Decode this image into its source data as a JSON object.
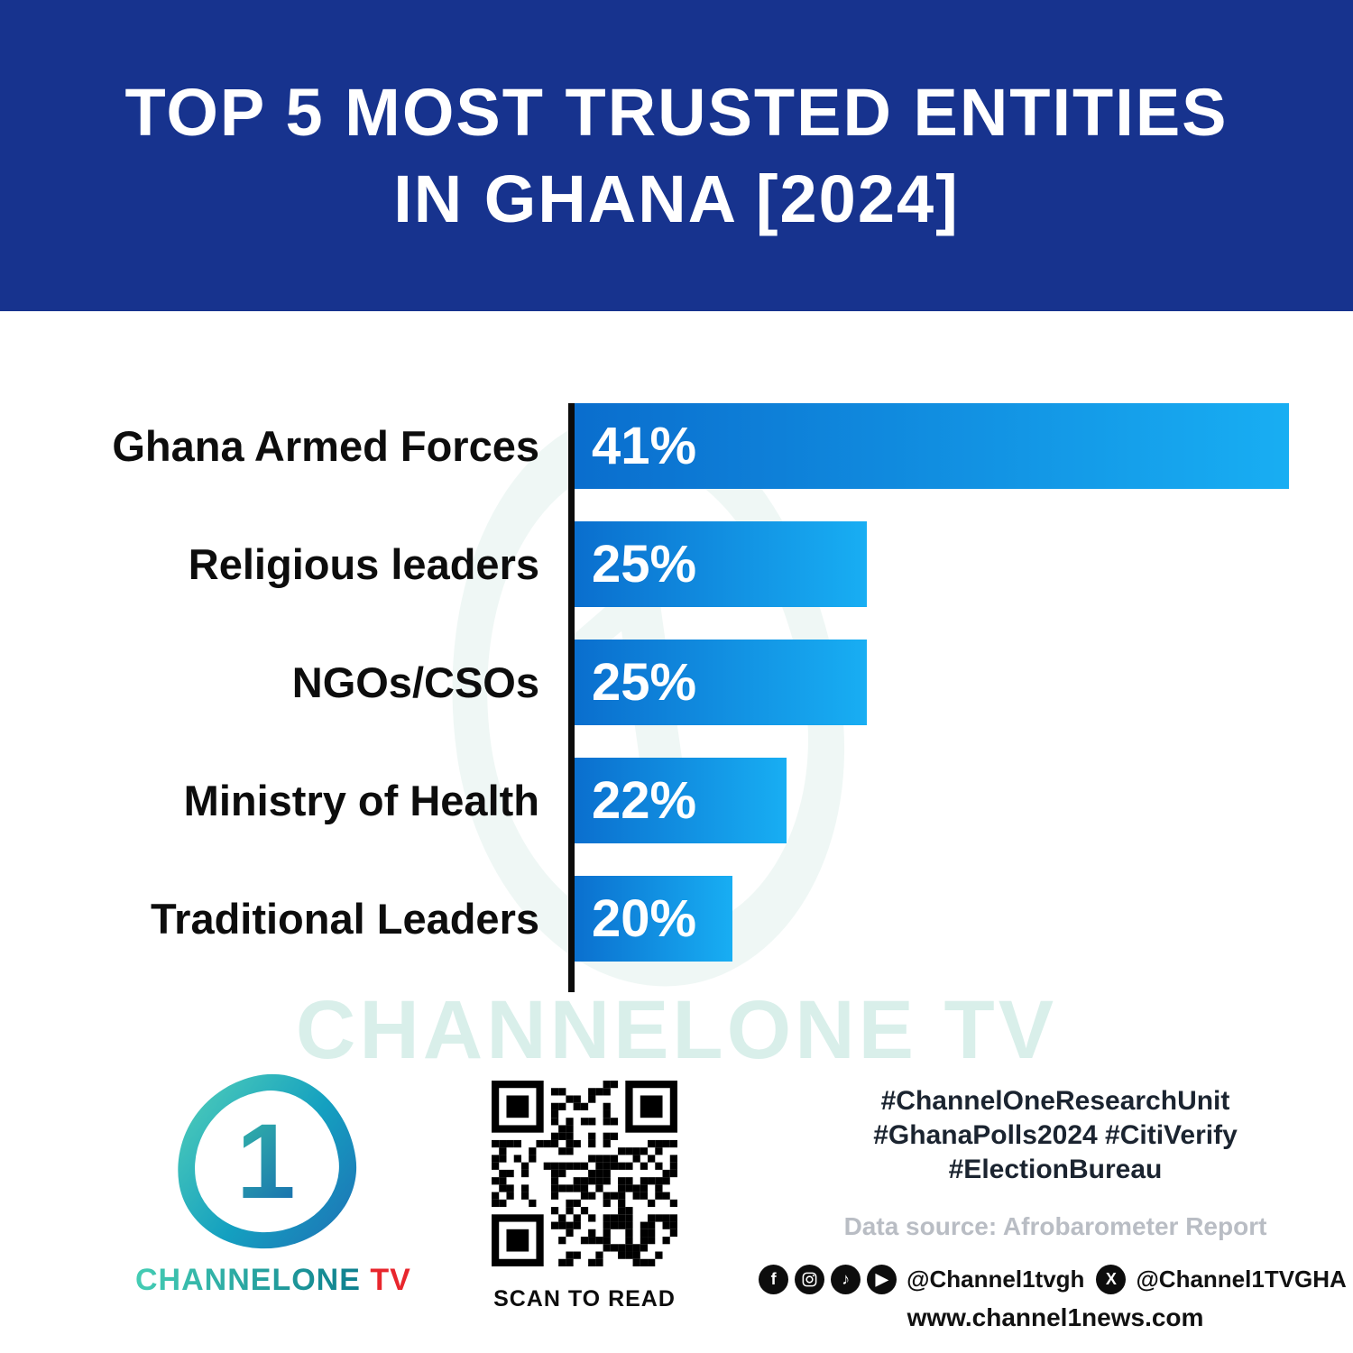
{
  "header": {
    "title_line1": "TOP 5 MOST TRUSTED ENTITIES",
    "title_line2": "IN GHANA [2024]",
    "bg_color": "#17338e"
  },
  "chart_data": {
    "type": "bar",
    "orientation": "horizontal",
    "title": "Top 5 most trusted entities in Ghana [2024]",
    "categories": [
      "Ghana Armed Forces",
      "Religious leaders",
      "NGOs/CSOs",
      "Ministry of Health",
      "Traditional Leaders"
    ],
    "values": [
      41,
      25,
      25,
      22,
      20
    ],
    "value_labels": [
      "41%",
      "25%",
      "25%",
      "22%",
      "20%"
    ],
    "bar_display_width_pct": [
      99,
      41,
      41,
      30,
      22.5
    ],
    "bar_gradient": [
      "#0a6dcd",
      "#18aef3"
    ],
    "axis_color": "#0c0c0c",
    "grid": false,
    "legend": false
  },
  "watermark": {
    "text": "CHANNELONE TV"
  },
  "footer": {
    "logo": {
      "digit": "1",
      "brand_channelone": "CHANNELONE",
      "brand_tv": " TV"
    },
    "qr_caption": "SCAN TO READ",
    "hashtags": [
      "#ChannelOneResearchUnit",
      "#GhanaPolls2024 #CitiVerify",
      "#ElectionBureau"
    ],
    "data_source": "Data source: Afrobarometer Report",
    "social": {
      "handle_1": "@Channel1tvgh",
      "handle_2": "@Channel1TVGHA",
      "icons": [
        "facebook",
        "instagram",
        "tiktok",
        "youtube",
        "x"
      ]
    },
    "website": "www.channel1news.com"
  }
}
